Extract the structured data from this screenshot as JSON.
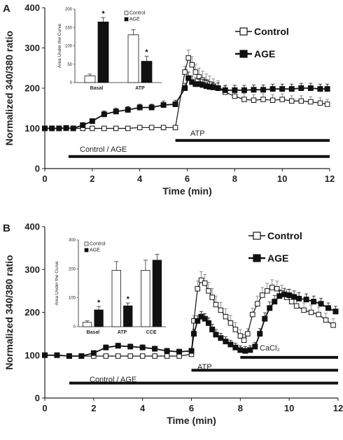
{
  "chart_data": [
    {
      "panel": "A",
      "type": "line",
      "ylabel": "Normalized 340/380 ratio",
      "xlabel": "Time (min)",
      "xlim": [
        0,
        12
      ],
      "ylim": [
        0,
        400
      ],
      "xticks": [
        "0",
        "2",
        "4",
        "6",
        "8",
        "10",
        "12"
      ],
      "yticks": [
        "0",
        "100",
        "200",
        "300",
        "400"
      ],
      "legend": {
        "placement": "top-right",
        "entries": [
          "Control",
          "AGE"
        ]
      },
      "series": [
        {
          "name": "Control",
          "marker": "open-square",
          "points": [
            [
              0,
              100
            ],
            [
              0.3,
              100
            ],
            [
              0.6,
              100
            ],
            [
              0.9,
              100
            ],
            [
              1.2,
              100
            ],
            [
              1.6,
              100
            ],
            [
              2,
              100
            ],
            [
              2.5,
              100
            ],
            [
              3,
              100
            ],
            [
              3.5,
              100
            ],
            [
              4,
              102
            ],
            [
              4.5,
              102
            ],
            [
              5,
              102
            ],
            [
              5.5,
              102
            ],
            [
              5.9,
              240
            ],
            [
              6.05,
              275
            ],
            [
              6.2,
              258
            ],
            [
              6.35,
              240
            ],
            [
              6.5,
              228
            ],
            [
              6.65,
              220
            ],
            [
              6.8,
              215
            ],
            [
              6.95,
              210
            ],
            [
              7.1,
              205
            ],
            [
              7.3,
              200
            ],
            [
              7.6,
              190
            ],
            [
              8,
              180
            ],
            [
              8.4,
              172
            ],
            [
              8.8,
              170
            ],
            [
              9.2,
              172
            ],
            [
              9.6,
              170
            ],
            [
              10,
              172
            ],
            [
              10.4,
              168
            ],
            [
              10.8,
              168
            ],
            [
              11.2,
              166
            ],
            [
              11.6,
              163
            ],
            [
              11.9,
              160
            ]
          ],
          "error": [
            0,
            0,
            0,
            0,
            0,
            0,
            0,
            0,
            0,
            0,
            0,
            0,
            0,
            0,
            15,
            20,
            20,
            20,
            22,
            22,
            20,
            20,
            18,
            18,
            15,
            15,
            15,
            14,
            14,
            14,
            14,
            13,
            13,
            13,
            13,
            12
          ]
        },
        {
          "name": "AGE",
          "marker": "filled-square",
          "points": [
            [
              0,
              100
            ],
            [
              0.3,
              100
            ],
            [
              0.6,
              100
            ],
            [
              0.9,
              101
            ],
            [
              1.2,
              100
            ],
            [
              1.6,
              108
            ],
            [
              2,
              118
            ],
            [
              2.5,
              135
            ],
            [
              3,
              142
            ],
            [
              3.5,
              146
            ],
            [
              4,
              152
            ],
            [
              4.5,
              152
            ],
            [
              5,
              158
            ],
            [
              5.5,
              160
            ],
            [
              5.9,
              200
            ],
            [
              6.05,
              225
            ],
            [
              6.2,
              215
            ],
            [
              6.35,
              210
            ],
            [
              6.5,
              210
            ],
            [
              6.65,
              208
            ],
            [
              6.8,
              205
            ],
            [
              6.95,
              203
            ],
            [
              7.1,
              202
            ],
            [
              7.3,
              200
            ],
            [
              7.6,
              195
            ],
            [
              8,
              195
            ],
            [
              8.4,
              195
            ],
            [
              8.8,
              196
            ],
            [
              9.2,
              196
            ],
            [
              9.6,
              198
            ],
            [
              10,
              198
            ],
            [
              10.4,
              198
            ],
            [
              10.8,
              200
            ],
            [
              11.2,
              200
            ],
            [
              11.6,
              198
            ],
            [
              11.9,
              198
            ]
          ],
          "error": [
            0,
            0,
            0,
            0,
            0,
            2,
            5,
            8,
            8,
            8,
            8,
            8,
            10,
            10,
            12,
            15,
            15,
            15,
            14,
            14,
            14,
            13,
            13,
            13,
            12,
            12,
            12,
            12,
            12,
            12,
            12,
            12,
            12,
            12,
            12,
            12
          ]
        }
      ],
      "annotations": [
        {
          "label": "ATP",
          "x_start": 5.5,
          "x_end": 12,
          "y": 70
        },
        {
          "label": "Control / AGE",
          "x_start": 1,
          "x_end": 12,
          "y": 30
        }
      ],
      "inset": {
        "type": "bar",
        "ylabel": "Area Under the Curve",
        "ylim": [
          0,
          200
        ],
        "yticks": [
          "0",
          "50",
          "100",
          "150",
          "200"
        ],
        "categories": [
          "Basal",
          "ATP"
        ],
        "legend": [
          "Control",
          "AGE"
        ],
        "series": [
          {
            "name": "Control",
            "values": [
              18,
              130
            ],
            "error": [
              5,
              14
            ]
          },
          {
            "name": "AGE",
            "values": [
              165,
              58
            ],
            "error": [
              12,
              14
            ]
          }
        ],
        "significance": [
          {
            "category": "Basal",
            "series": "AGE",
            "label": "*"
          },
          {
            "category": "ATP",
            "series": "AGE",
            "label": "*"
          }
        ]
      }
    },
    {
      "panel": "B",
      "type": "line",
      "ylabel": "Normalized 340/380 ratio",
      "xlabel": "Time (min)",
      "xlim": [
        0,
        12
      ],
      "ylim": [
        0,
        400
      ],
      "xticks": [
        "0",
        "2",
        "4",
        "6",
        "8",
        "10",
        "12"
      ],
      "yticks": [
        "0",
        "100",
        "200",
        "300",
        "400"
      ],
      "legend": {
        "placement": "top-right",
        "entries": [
          "Control",
          "AGE"
        ]
      },
      "series": [
        {
          "name": "Control",
          "marker": "open-square",
          "points": [
            [
              0,
              100
            ],
            [
              0.5,
              100
            ],
            [
              1,
              98
            ],
            [
              1.5,
              98
            ],
            [
              2,
              98
            ],
            [
              2.5,
              98
            ],
            [
              3,
              98
            ],
            [
              3.5,
              98
            ],
            [
              4,
              98
            ],
            [
              4.5,
              98
            ],
            [
              5,
              98
            ],
            [
              5.5,
              98
            ],
            [
              6,
              102
            ],
            [
              6.1,
              180
            ],
            [
              6.25,
              255
            ],
            [
              6.4,
              275
            ],
            [
              6.55,
              268
            ],
            [
              6.7,
              250
            ],
            [
              6.85,
              235
            ],
            [
              7,
              218
            ],
            [
              7.2,
              205
            ],
            [
              7.4,
              190
            ],
            [
              7.6,
              175
            ],
            [
              7.8,
              160
            ],
            [
              8,
              145
            ],
            [
              8.15,
              135
            ],
            [
              8.3,
              150
            ],
            [
              8.5,
              195
            ],
            [
              8.7,
              220
            ],
            [
              8.9,
              240
            ],
            [
              9.1,
              250
            ],
            [
              9.3,
              258
            ],
            [
              9.5,
              255
            ],
            [
              9.7,
              245
            ],
            [
              9.9,
              235
            ],
            [
              10.1,
              225
            ],
            [
              10.3,
              215
            ],
            [
              10.6,
              205
            ],
            [
              10.9,
              200
            ],
            [
              11.2,
              195
            ],
            [
              11.5,
              182
            ],
            [
              11.8,
              170
            ]
          ],
          "error": [
            0,
            0,
            0,
            0,
            0,
            0,
            0,
            0,
            0,
            0,
            0,
            0,
            0,
            12,
            18,
            20,
            20,
            20,
            20,
            20,
            18,
            18,
            18,
            16,
            15,
            14,
            12,
            15,
            18,
            18,
            18,
            18,
            18,
            18,
            18,
            18,
            18,
            17,
            17,
            16,
            16,
            15
          ]
        },
        {
          "name": "AGE",
          "marker": "filled-square",
          "points": [
            [
              0,
              100
            ],
            [
              0.5,
              100
            ],
            [
              1,
              98
            ],
            [
              1.5,
              98
            ],
            [
              2,
              105
            ],
            [
              2.5,
              118
            ],
            [
              3,
              122
            ],
            [
              3.5,
              120
            ],
            [
              4,
              118
            ],
            [
              4.5,
              115
            ],
            [
              5,
              110
            ],
            [
              5.5,
              108
            ],
            [
              6,
              110
            ],
            [
              6.1,
              150
            ],
            [
              6.25,
              180
            ],
            [
              6.4,
              190
            ],
            [
              6.55,
              185
            ],
            [
              6.7,
              175
            ],
            [
              6.85,
              160
            ],
            [
              7,
              148
            ],
            [
              7.2,
              140
            ],
            [
              7.4,
              132
            ],
            [
              7.6,
              125
            ],
            [
              7.8,
              118
            ],
            [
              8,
              112
            ],
            [
              8.2,
              110
            ],
            [
              8.4,
              112
            ],
            [
              8.6,
              120
            ],
            [
              8.8,
              150
            ],
            [
              9,
              185
            ],
            [
              9.2,
              210
            ],
            [
              9.4,
              225
            ],
            [
              9.6,
              238
            ],
            [
              9.8,
              242
            ],
            [
              10,
              240
            ],
            [
              10.2,
              236
            ],
            [
              10.4,
              232
            ],
            [
              10.7,
              230
            ],
            [
              11,
              225
            ],
            [
              11.3,
              220
            ],
            [
              11.6,
              210
            ],
            [
              11.9,
              202
            ]
          ],
          "error": [
            0,
            0,
            0,
            0,
            4,
            6,
            6,
            6,
            6,
            6,
            6,
            6,
            6,
            10,
            12,
            12,
            12,
            12,
            12,
            12,
            11,
            11,
            10,
            10,
            10,
            10,
            10,
            10,
            12,
            14,
            14,
            14,
            14,
            14,
            14,
            14,
            14,
            13,
            13,
            13,
            12,
            12
          ]
        }
      ],
      "annotations": [
        {
          "label": "CaCl₂",
          "x_start": 8,
          "x_end": 12,
          "y": 95
        },
        {
          "label": "ATP",
          "x_start": 6,
          "x_end": 12,
          "y": 65
        },
        {
          "label": "Control / AGE",
          "x_start": 1,
          "x_end": 12,
          "y": 35
        }
      ],
      "inset": {
        "type": "bar",
        "ylabel": "Area Under the Curve",
        "ylim": [
          0,
          300
        ],
        "yticks": [
          "0",
          "100",
          "200",
          "300"
        ],
        "categories": [
          "Basal",
          "ATP",
          "CCE"
        ],
        "legend": [
          "Control",
          "AGE"
        ],
        "series": [
          {
            "name": "Control",
            "values": [
              15,
              195,
              195
            ],
            "error": [
              5,
              30,
              35
            ]
          },
          {
            "name": "AGE",
            "values": [
              58,
              72,
              230
            ],
            "error": [
              12,
              10,
              20
            ]
          }
        ],
        "significance": [
          {
            "category": "Basal",
            "series": "AGE",
            "label": "*"
          },
          {
            "category": "ATP",
            "series": "AGE",
            "label": "*"
          }
        ]
      }
    }
  ]
}
